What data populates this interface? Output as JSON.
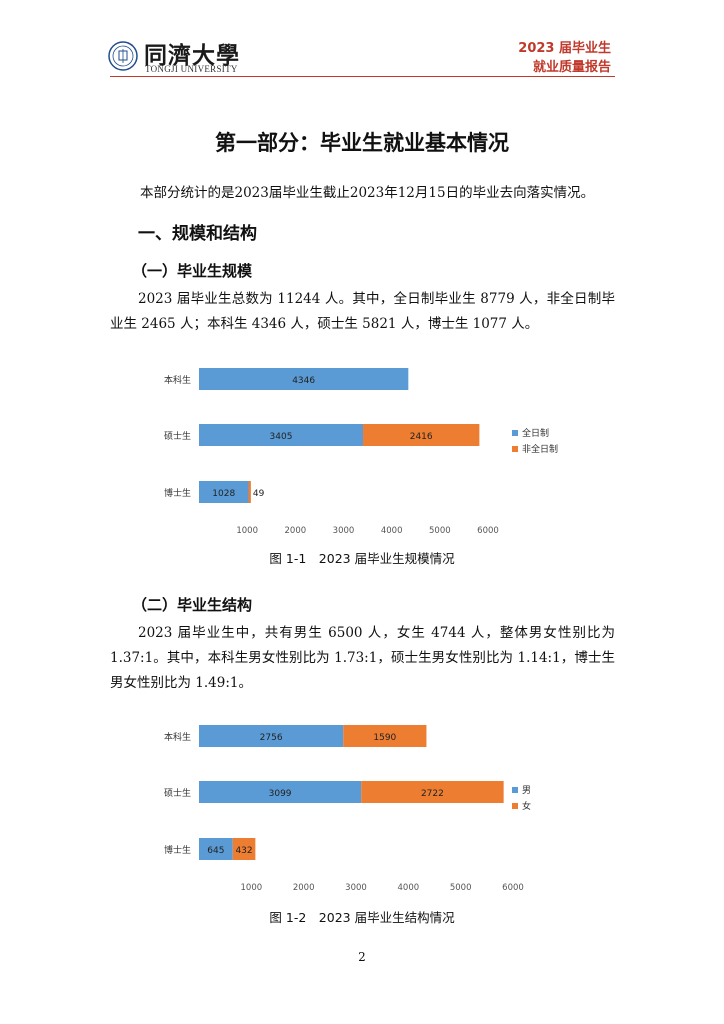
{
  "header": {
    "logo_cn": "同濟大學",
    "logo_en": "TONGJI UNIVERSITY",
    "report_year": "2023 届毕业生",
    "report_title": "就业质量报告"
  },
  "part_title": "第一部分：毕业生就业基本情况",
  "intro": "本部分统计的是2023届毕业生截止2023年12月15日的毕业去向落实情况。",
  "section1": {
    "title": "一、规模和结构",
    "sub1": {
      "title": "（一）毕业生规模",
      "paragraph": "2023 届毕业生总数为 11244 人。其中，全日制毕业生 8779 人，非全日制毕业生 2465 人；本科生 4346 人，硕士生 5821 人，博士生 1077 人。"
    },
    "sub2": {
      "title": "（二）毕业生结构",
      "paragraph": "2023 届毕业生中，共有男生 6500 人，女生 4744 人，整体男女性别比为 1.37:1。其中，本科生男女性别比为 1.73:1，硕士生男女性别比为 1.14:1，博士生男女性别比为 1.49:1。"
    }
  },
  "page_number": "2",
  "chart_data": [
    {
      "type": "bar",
      "orientation": "horizontal",
      "stacked": true,
      "caption": "图 1-1　2023 届毕业生规模情况",
      "categories": [
        "本科生",
        "硕士生",
        "博士生"
      ],
      "series": [
        {
          "name": "全日制",
          "color": "#5b9bd5",
          "values": [
            4346,
            3405,
            1028
          ]
        },
        {
          "name": "非全日制",
          "color": "#ed7d31",
          "values": [
            0,
            2416,
            49
          ]
        }
      ],
      "data_labels": [
        [
          "4346",
          ""
        ],
        [
          "3405",
          "2416"
        ],
        [
          "1028",
          "49"
        ]
      ],
      "x_ticks": [
        "1000",
        "2000",
        "3000",
        "4000",
        "5000",
        "6000"
      ],
      "xlim": [
        0,
        6000
      ],
      "legend": "right"
    },
    {
      "type": "bar",
      "orientation": "horizontal",
      "stacked": true,
      "caption": "图 1-2　2023 届毕业生结构情况",
      "categories": [
        "本科生",
        "硕士生",
        "博士生"
      ],
      "series": [
        {
          "name": "男",
          "color": "#5b9bd5",
          "values": [
            2756,
            3099,
            645
          ]
        },
        {
          "name": "女",
          "color": "#ed7d31",
          "values": [
            1590,
            2722,
            432
          ]
        }
      ],
      "data_labels": [
        [
          "2756",
          "1590"
        ],
        [
          "3099",
          "2722"
        ],
        [
          "645",
          "432"
        ]
      ],
      "x_ticks": [
        "1000",
        "2000",
        "3000",
        "4000",
        "5000",
        "6000"
      ],
      "xlim": [
        0,
        6000
      ],
      "legend": "right"
    }
  ]
}
